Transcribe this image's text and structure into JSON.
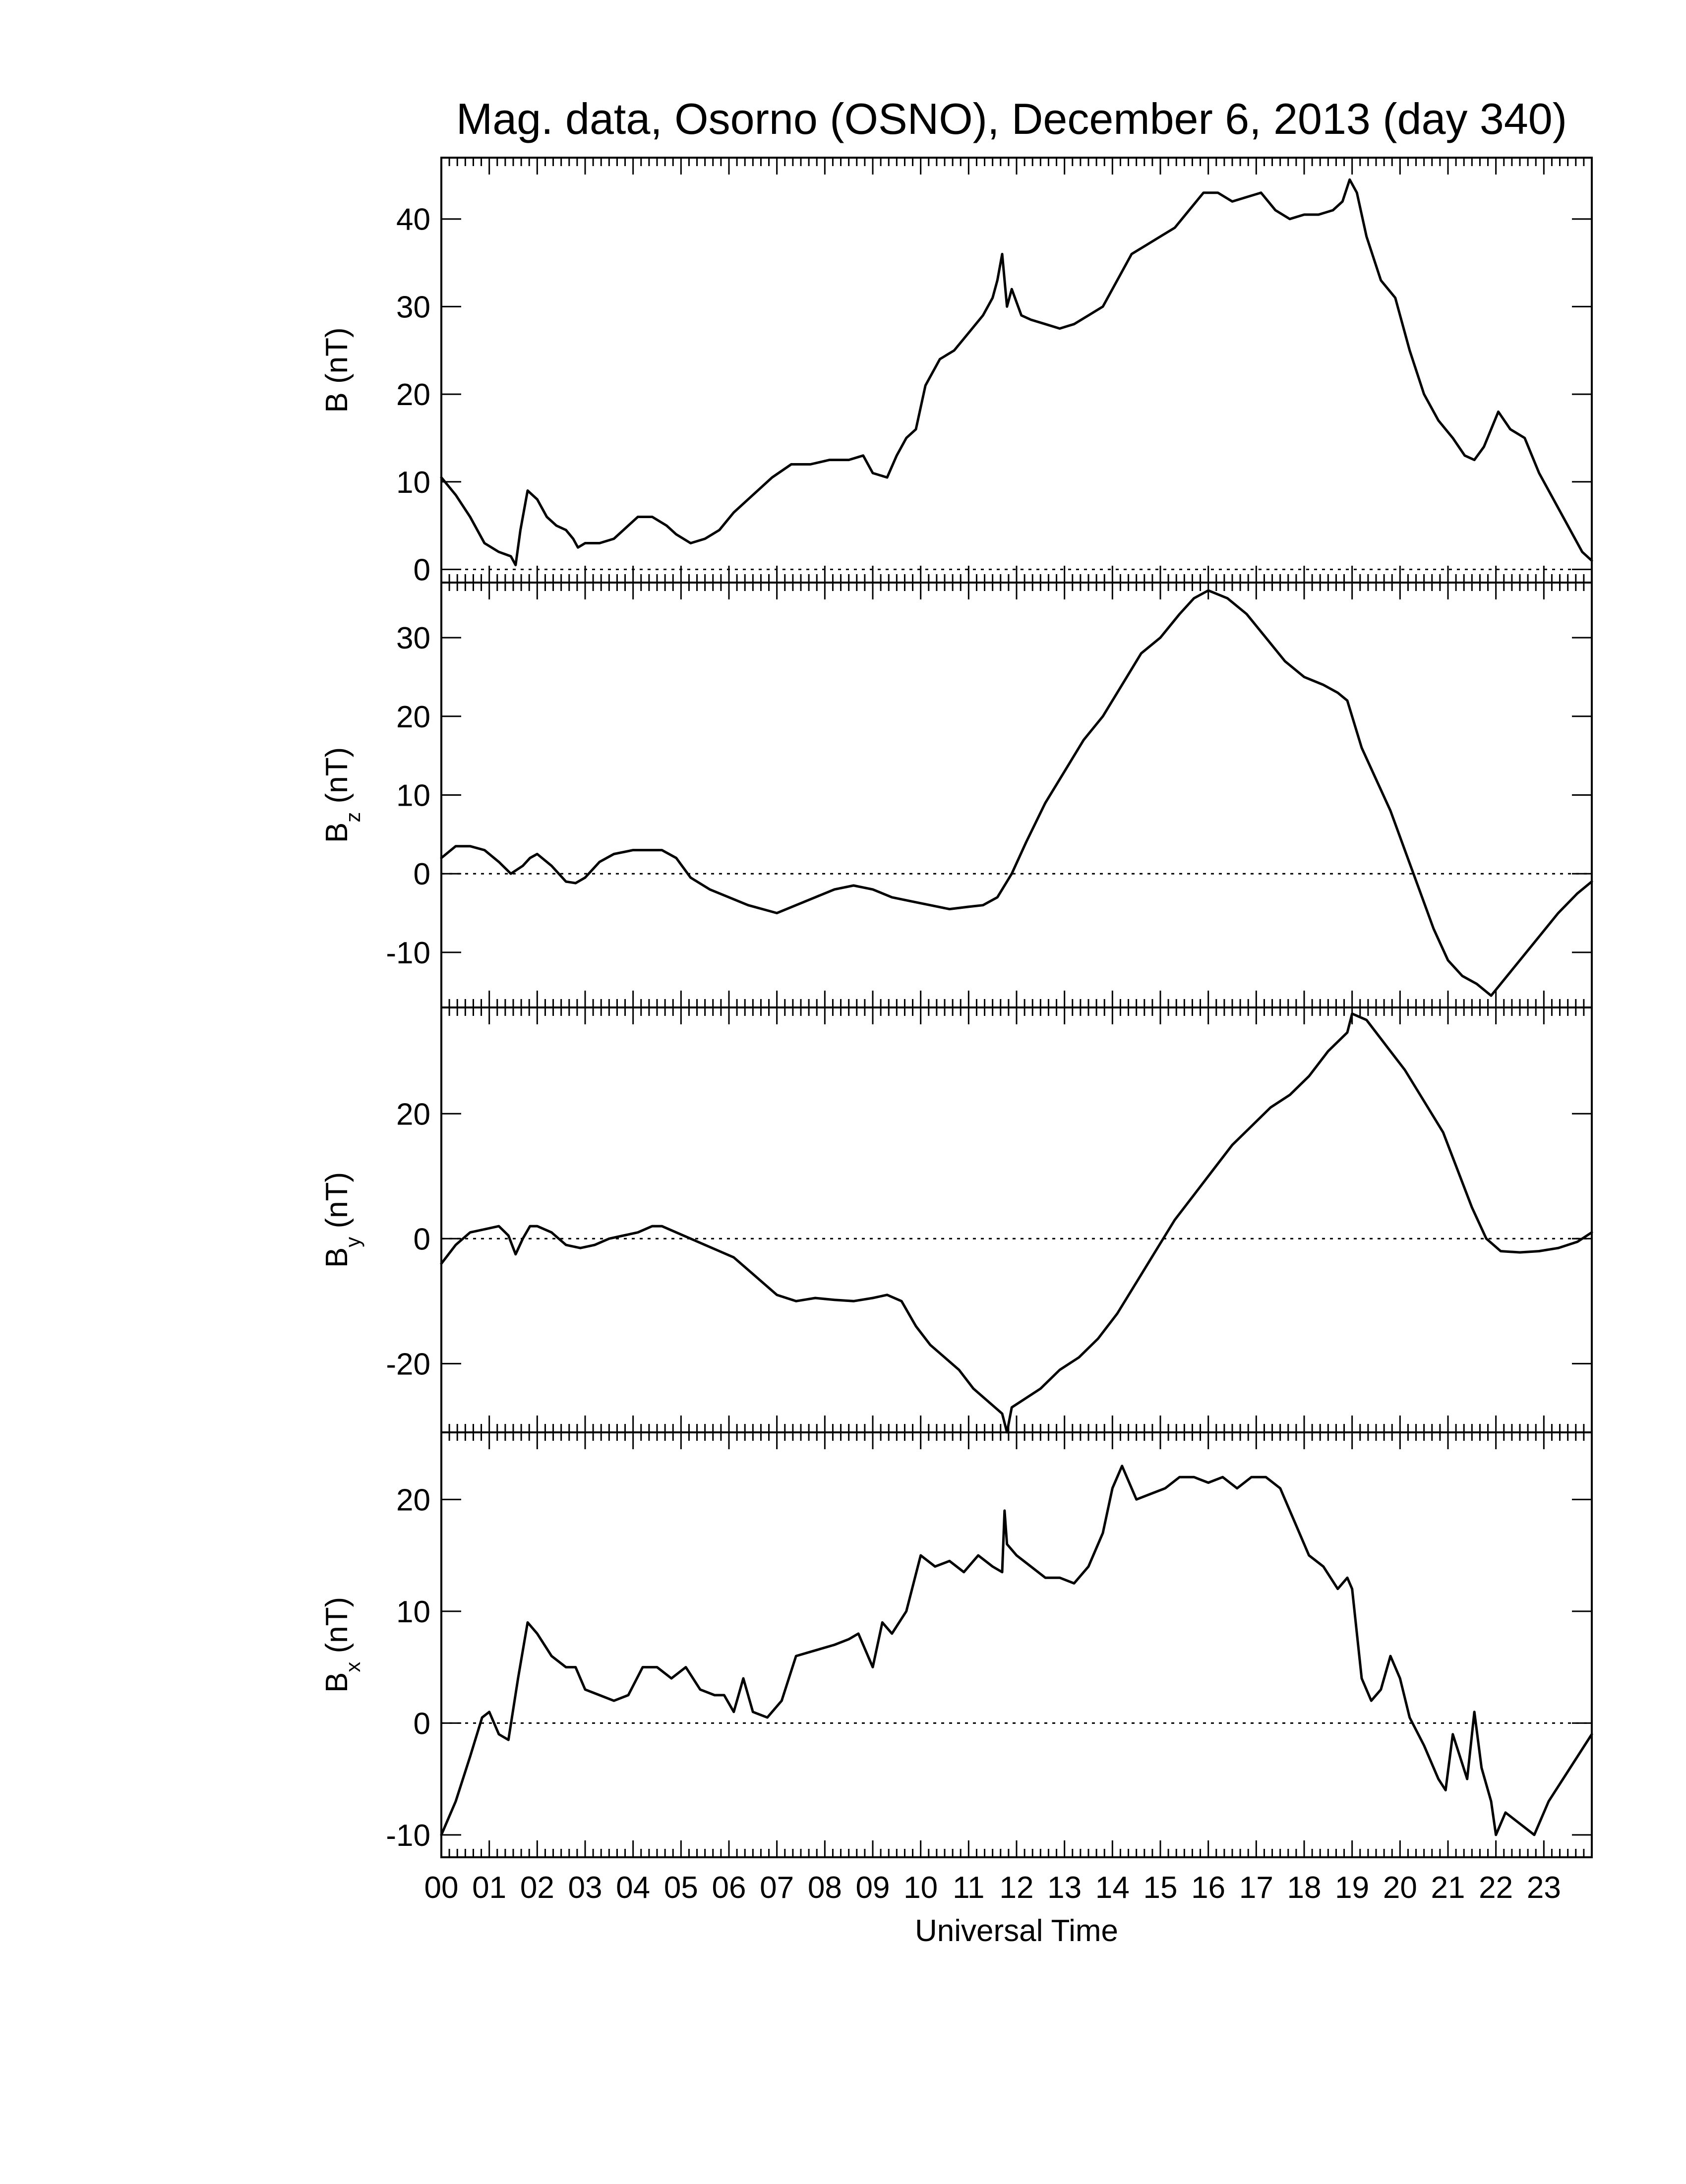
{
  "chart_data": {
    "type": "line",
    "title": "Mag. data, Osorno (OSNO), December 6, 2013 (day 340)",
    "xlabel": "Universal Time",
    "xlim": [
      0,
      24
    ],
    "x_tick_labels": [
      "00",
      "01",
      "02",
      "03",
      "04",
      "05",
      "06",
      "07",
      "08",
      "09",
      "10",
      "11",
      "12",
      "13",
      "14",
      "15",
      "16",
      "17",
      "18",
      "19",
      "20",
      "21",
      "22",
      "23"
    ],
    "grid": false,
    "zero_reference_line": "dotted",
    "colors": {
      "line": "#000000",
      "axes": "#000000",
      "background": "#ffffff"
    },
    "panels": [
      {
        "name": "B",
        "label_main": "B",
        "label_sub": "",
        "label_unit": " (nT)",
        "ylim": [
          -1.5,
          47
        ],
        "yticks": [
          0,
          10,
          20,
          30,
          40
        ],
        "series": [
          {
            "x": [
              0,
              0.3,
              0.6,
              0.9,
              1.2,
              1.45,
              1.55,
              1.65,
              1.8,
              2.0,
              2.2,
              2.4,
              2.6,
              2.75,
              2.85,
              3.0,
              3.3,
              3.6,
              3.9,
              4.1,
              4.4,
              4.7,
              4.9,
              5.2,
              5.5,
              5.8,
              6.1,
              6.5,
              6.9,
              7.3,
              7.7,
              8.1,
              8.5,
              8.8,
              9.0,
              9.3,
              9.5,
              9.7,
              9.9,
              10.1,
              10.4,
              10.7,
              11.0,
              11.3,
              11.5,
              11.6,
              11.7,
              11.8,
              11.9,
              12.1,
              12.3,
              12.6,
              12.9,
              13.2,
              13.5,
              13.8,
              14.1,
              14.4,
              14.7,
              15.0,
              15.3,
              15.6,
              15.9,
              16.2,
              16.5,
              16.8,
              17.1,
              17.4,
              17.7,
              18.0,
              18.3,
              18.6,
              18.8,
              18.95,
              19.1,
              19.3,
              19.6,
              19.9,
              20.2,
              20.5,
              20.8,
              21.1,
              21.35,
              21.55,
              21.75,
              21.9,
              22.05,
              22.3,
              22.6,
              22.9,
              23.2,
              23.5,
              23.8,
              24.0
            ],
            "y": [
              10.5,
              8.5,
              6,
              3,
              2,
              1.5,
              0.5,
              4.5,
              9,
              8,
              6,
              5,
              4.5,
              3.5,
              2.5,
              3,
              3,
              3.5,
              5,
              6,
              6,
              5,
              4,
              3,
              3.5,
              4.5,
              6.5,
              8.5,
              10.5,
              12,
              12,
              12.5,
              12.5,
              13,
              11,
              10.5,
              13,
              15,
              16,
              21,
              24,
              25,
              27,
              29,
              31,
              33,
              36,
              30,
              32,
              29,
              28.5,
              28,
              27.5,
              28,
              29,
              30,
              33,
              36,
              37,
              38,
              39,
              41,
              43,
              43,
              42,
              42.5,
              43,
              41,
              40,
              40.5,
              40.5,
              41,
              42,
              44.5,
              43,
              38,
              33,
              31,
              25,
              20,
              17,
              15,
              13,
              12.5,
              14,
              16,
              18,
              16,
              15,
              11,
              8,
              5,
              2,
              1
            ]
          }
        ]
      },
      {
        "name": "Bz",
        "label_main": "B",
        "label_sub": "z",
        "label_unit": " (nT)",
        "ylim": [
          -17,
          37
        ],
        "yticks": [
          -10,
          0,
          10,
          20,
          30
        ],
        "series": [
          {
            "x": [
              0,
              0.3,
              0.6,
              0.9,
              1.2,
              1.45,
              1.7,
              1.85,
              2.0,
              2.3,
              2.6,
              2.8,
              3.0,
              3.3,
              3.6,
              4.0,
              4.3,
              4.6,
              4.9,
              5.2,
              5.6,
              6.0,
              6.4,
              6.7,
              7.0,
              7.4,
              7.8,
              8.2,
              8.6,
              9.0,
              9.4,
              9.8,
              10.2,
              10.6,
              11.0,
              11.3,
              11.6,
              11.9,
              12.2,
              12.6,
              13.0,
              13.4,
              13.8,
              14.2,
              14.6,
              15.0,
              15.4,
              15.7,
              16.0,
              16.4,
              16.8,
              17.2,
              17.6,
              18.0,
              18.4,
              18.7,
              18.9,
              19.2,
              19.5,
              19.8,
              20.1,
              20.4,
              20.7,
              21.0,
              21.3,
              21.6,
              21.9,
              22.1,
              22.5,
              22.9,
              23.3,
              23.7,
              24.0
            ],
            "y": [
              2,
              3.5,
              3.5,
              3,
              1.5,
              0,
              1,
              2,
              2.5,
              1,
              -1,
              -1.2,
              -0.5,
              1.5,
              2.5,
              3,
              3,
              3,
              2,
              -0.5,
              -2,
              -3,
              -4,
              -4.5,
              -5,
              -4,
              -3,
              -2,
              -1.5,
              -2,
              -3,
              -3.5,
              -4,
              -4.5,
              -4.2,
              -4,
              -3,
              0,
              4,
              9,
              13,
              17,
              20,
              24,
              28,
              30,
              33,
              35,
              36,
              35,
              33,
              30,
              27,
              25,
              24,
              23,
              22,
              16,
              12,
              8,
              3,
              -2,
              -7,
              -11,
              -13,
              -14,
              -15.5,
              -14,
              -11,
              -8,
              -5,
              -2.5,
              -1
            ]
          }
        ]
      },
      {
        "name": "By",
        "label_main": "B",
        "label_sub": "y",
        "label_unit": " (nT)",
        "ylim": [
          -31,
          37
        ],
        "yticks": [
          -20,
          0,
          20
        ],
        "series": [
          {
            "x": [
              0,
              0.3,
              0.6,
              0.9,
              1.2,
              1.4,
              1.55,
              1.7,
              1.85,
              2.0,
              2.3,
              2.6,
              2.9,
              3.2,
              3.5,
              3.8,
              4.1,
              4.4,
              4.6,
              4.9,
              5.2,
              5.5,
              5.8,
              6.1,
              6.4,
              6.7,
              7.0,
              7.4,
              7.8,
              8.2,
              8.6,
              9.0,
              9.3,
              9.6,
              9.9,
              10.2,
              10.5,
              10.8,
              11.1,
              11.4,
              11.7,
              11.8,
              11.9,
              12.1,
              12.5,
              12.9,
              13.3,
              13.7,
              14.1,
              14.5,
              14.9,
              15.3,
              15.7,
              16.1,
              16.5,
              16.9,
              17.3,
              17.7,
              18.1,
              18.5,
              18.9,
              19.0,
              19.3,
              19.7,
              20.1,
              20.5,
              20.9,
              21.2,
              21.5,
              21.8,
              22.1,
              22.5,
              22.9,
              23.3,
              23.7,
              24.0
            ],
            "y": [
              -4,
              -1,
              1,
              1.5,
              2,
              0.5,
              -2.5,
              0,
              2,
              2,
              1,
              -1,
              -1.5,
              -1,
              0,
              0.5,
              1,
              2,
              2,
              1,
              0,
              -1,
              -2,
              -3,
              -5,
              -7,
              -9,
              -10,
              -9.5,
              -9.8,
              -10,
              -9.5,
              -9,
              -10,
              -14,
              -17,
              -19,
              -21,
              -24,
              -26,
              -28,
              -31,
              -27,
              -26,
              -24,
              -21,
              -19,
              -16,
              -12,
              -7,
              -2,
              3,
              7,
              11,
              15,
              18,
              21,
              23,
              26,
              30,
              33,
              36,
              35,
              31,
              27,
              22,
              17,
              11,
              5,
              0,
              -2,
              -2.2,
              -2,
              -1.5,
              -0.5,
              1
            ]
          }
        ]
      },
      {
        "name": "Bx",
        "label_main": "B",
        "label_sub": "x",
        "label_unit": " (nT)",
        "ylim": [
          -12,
          26
        ],
        "yticks": [
          -10,
          0,
          10,
          20
        ],
        "series": [
          {
            "x": [
              0,
              0.3,
              0.6,
              0.85,
              1.0,
              1.2,
              1.4,
              1.6,
              1.8,
              2.0,
              2.3,
              2.6,
              2.8,
              3.0,
              3.3,
              3.6,
              3.9,
              4.2,
              4.5,
              4.8,
              5.1,
              5.4,
              5.7,
              5.9,
              6.1,
              6.3,
              6.5,
              6.8,
              7.1,
              7.4,
              7.8,
              8.2,
              8.5,
              8.7,
              9.0,
              9.2,
              9.4,
              9.7,
              10.0,
              10.3,
              10.6,
              10.9,
              11.2,
              11.5,
              11.7,
              11.75,
              11.8,
              12.0,
              12.3,
              12.6,
              12.9,
              13.2,
              13.5,
              13.8,
              14.0,
              14.2,
              14.5,
              14.8,
              15.1,
              15.4,
              15.7,
              16.0,
              16.3,
              16.6,
              16.9,
              17.2,
              17.5,
              17.8,
              18.1,
              18.4,
              18.7,
              18.9,
              19.0,
              19.2,
              19.4,
              19.6,
              19.8,
              20.0,
              20.2,
              20.5,
              20.8,
              20.95,
              21.1,
              21.25,
              21.4,
              21.55,
              21.7,
              21.9,
              22.0,
              22.2,
              22.5,
              22.8,
              23.1,
              23.4,
              23.7,
              24.0
            ],
            "y": [
              -10,
              -7,
              -3,
              0.5,
              1,
              -1,
              -1.5,
              4,
              9,
              8,
              6,
              5,
              5,
              3,
              2.5,
              2,
              2.5,
              5,
              5,
              4,
              5,
              3,
              2.5,
              2.5,
              1,
              4,
              1,
              0.5,
              2,
              6,
              6.5,
              7,
              7.5,
              8,
              5,
              9,
              8,
              10,
              15,
              14,
              14.5,
              13.5,
              15,
              14,
              13.5,
              19,
              16,
              15,
              14,
              13,
              13,
              12.5,
              14,
              17,
              21,
              23,
              20,
              20.5,
              21,
              22,
              22,
              21.5,
              22,
              21,
              22,
              22,
              21,
              18,
              15,
              14,
              12,
              13,
              12,
              4,
              2,
              3,
              6,
              4,
              0.5,
              -2,
              -5,
              -6,
              -1,
              -3,
              -5,
              1,
              -4,
              -7,
              -10,
              -8,
              -9,
              -10,
              -7,
              -5,
              -3,
              -1
            ]
          }
        ]
      }
    ]
  }
}
